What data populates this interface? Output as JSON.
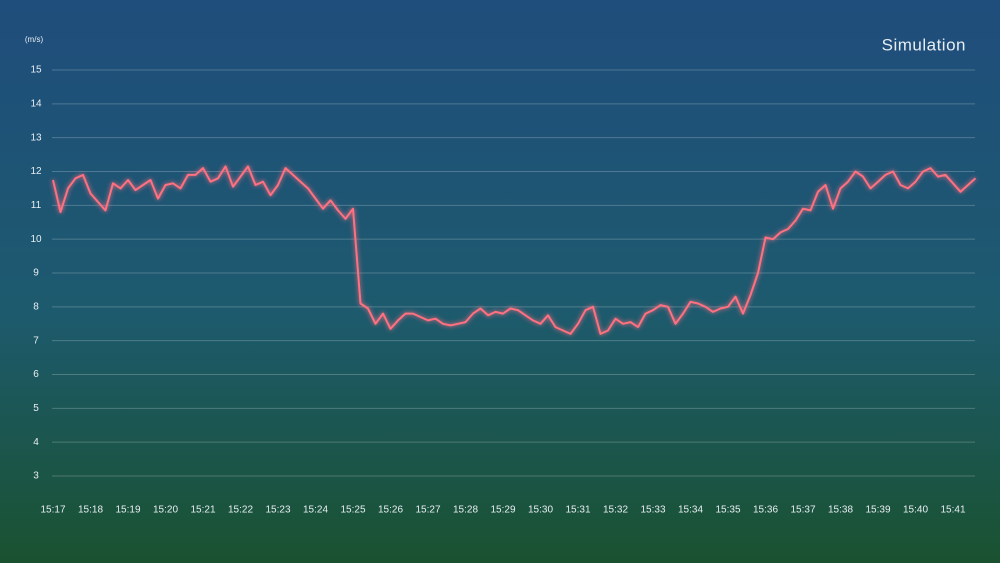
{
  "chart_data": {
    "type": "line",
    "title": "Simulation",
    "y_label": "(m/s)",
    "categories": [
      "15:17",
      null,
      null,
      null,
      null,
      "15:18",
      null,
      null,
      null,
      null,
      "15:19",
      null,
      null,
      null,
      null,
      "15:20",
      null,
      null,
      null,
      null,
      "15:21",
      null,
      null,
      null,
      null,
      "15:22",
      null,
      null,
      null,
      null,
      "15:23",
      null,
      null,
      null,
      null,
      "15:24",
      null,
      null,
      null,
      null,
      "15:25",
      null,
      null,
      null,
      null,
      "15:26",
      null,
      null,
      null,
      null,
      "15:27",
      null,
      null,
      null,
      null,
      "15:28",
      null,
      null,
      null,
      null,
      "15:29",
      null,
      null,
      null,
      null,
      "15:30",
      null,
      null,
      null,
      null,
      "15:31",
      null,
      null,
      null,
      null,
      "15:32",
      null,
      null,
      null,
      null,
      "15:33",
      null,
      null,
      null,
      null,
      "15:34",
      null,
      null,
      null,
      null,
      "15:35",
      null,
      null,
      null,
      null,
      "15:36",
      null,
      null,
      null,
      null,
      "15:37",
      null,
      null,
      null,
      null,
      "15:38",
      null,
      null,
      null,
      null,
      "15:39",
      null,
      null,
      null,
      null,
      "15:40",
      null,
      null,
      null,
      null,
      "15:41",
      null,
      null,
      null
    ],
    "values": [
      11.75,
      10.8,
      11.5,
      11.8,
      11.9,
      11.35,
      11.1,
      10.85,
      11.65,
      11.5,
      11.75,
      11.45,
      11.6,
      11.75,
      11.2,
      11.6,
      11.65,
      11.5,
      11.9,
      11.9,
      12.1,
      11.7,
      11.8,
      12.15,
      11.55,
      11.85,
      12.15,
      11.6,
      11.7,
      11.3,
      11.6,
      12.1,
      11.9,
      11.7,
      11.5,
      11.2,
      10.9,
      11.15,
      10.85,
      10.6,
      10.9,
      8.1,
      7.95,
      7.5,
      7.8,
      7.35,
      7.6,
      7.8,
      7.8,
      7.7,
      7.6,
      7.65,
      7.5,
      7.45,
      7.5,
      7.55,
      7.8,
      7.95,
      7.75,
      7.85,
      7.8,
      7.95,
      7.9,
      7.75,
      7.6,
      7.5,
      7.75,
      7.4,
      7.3,
      7.2,
      7.5,
      7.9,
      8.0,
      7.2,
      7.3,
      7.65,
      7.5,
      7.55,
      7.4,
      7.8,
      7.9,
      8.05,
      8.0,
      7.5,
      7.8,
      8.15,
      8.1,
      8.0,
      7.85,
      7.95,
      8.0,
      8.3,
      7.8,
      8.35,
      9.0,
      10.05,
      10.0,
      10.2,
      10.3,
      10.55,
      10.9,
      10.85,
      11.4,
      11.6,
      10.9,
      11.5,
      11.7,
      12.0,
      11.85,
      11.5,
      11.7,
      11.9,
      12.0,
      11.6,
      11.5,
      11.7,
      12.0,
      12.1,
      11.85,
      11.9,
      11.65,
      11.4,
      11.6,
      11.8
    ],
    "color": "#ff7080",
    "ylim": [
      3,
      15
    ],
    "yticks": [
      3,
      4,
      5,
      6,
      7,
      8,
      9,
      10,
      11,
      12,
      13,
      14,
      15
    ],
    "grid": true
  }
}
